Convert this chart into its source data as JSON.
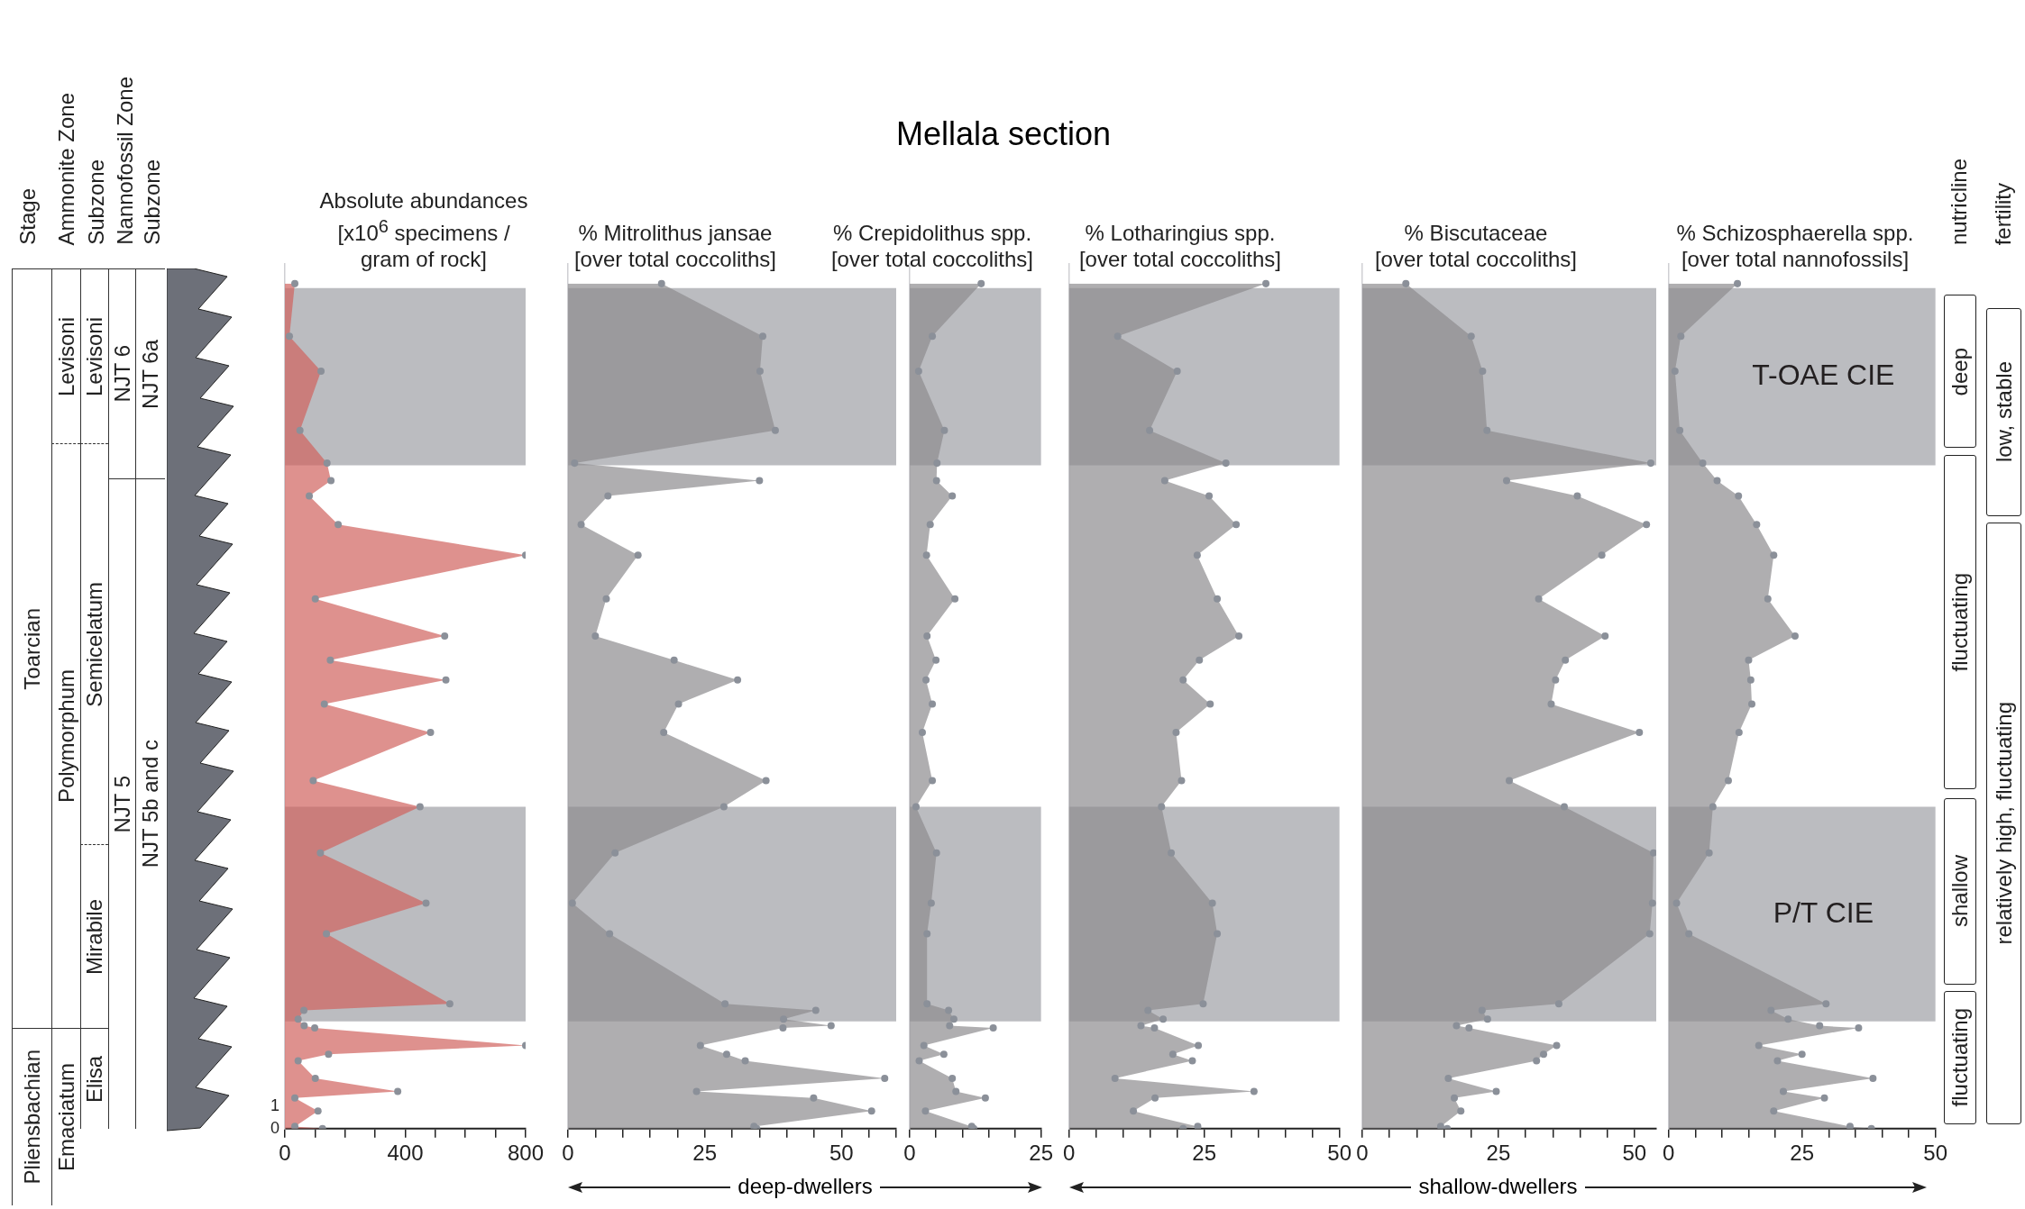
{
  "chart_data": [
    {
      "type": "other",
      "title": "Mellala section",
      "annotations": [
        "Stage",
        "Ammonite Zone",
        "Subzone",
        "Nannofossil Zone",
        "Subzone",
        "Toarcian",
        "Pliensbachian",
        "Levisoni",
        "Polymorphum",
        "Emaciatum",
        "Levisoni",
        "Semicelatum",
        "Mirabile",
        "Elisa",
        "NJT 6",
        "NJT 5",
        "NJT 6a",
        "NJT 5b and c"
      ]
    },
    {
      "type": "area",
      "orientation": "horizontal",
      "title": "Absolute abundances [x10$^{6}$ specimens / gram of rock]",
      "marker": "circle",
      "color": "#d0625e",
      "x": [
        38.6,
        36.2,
        34.6,
        31.9,
        30.4,
        29.6,
        28.9,
        27.6,
        26.2,
        24.2,
        22.5,
        21.4,
        20.5,
        19.4,
        18.1,
        15.9,
        14.7,
        12.6,
        10.3,
        8.9,
        5.7,
        5.4,
        5.0,
        4.7,
        4.6,
        3.8,
        3.4,
        3.1,
        2.3,
        1.7,
        1.4,
        0.8,
        0.1,
        0.0
      ],
      "values": [
        33,
        15,
        120,
        50,
        140,
        153,
        81,
        177,
        800,
        101,
        531,
        151,
        535,
        131,
        484,
        94,
        449,
        118,
        469,
        138,
        548,
        63,
        44,
        64,
        99,
        800,
        145,
        44,
        101,
        375,
        33,
        110,
        33,
        125
      ],
      "xlim": [
        0,
        800
      ],
      "xticks": [
        0,
        {
          "value": 100,
          "label": null
        },
        {
          "value": 200,
          "label": null
        },
        {
          "value": 300,
          "label": null
        },
        400,
        {
          "value": 500,
          "label": null
        },
        {
          "value": 600,
          "label": null
        },
        {
          "value": 700,
          "label": null
        },
        800
      ],
      "ylim": [
        0,
        39.5
      ],
      "yticks": [
        0,
        1
      ],
      "bands": [
        {
          "axis": "y",
          "from": 30.3,
          "to": 38.4,
          "color": "#bbbcc0"
        },
        {
          "axis": "y",
          "from": 4.9,
          "to": 14.7,
          "color": "#bbbcc0"
        }
      ]
    },
    {
      "type": "area",
      "orientation": "horizontal",
      "title": "% Mitrolithus jansae [over total coccoliths]",
      "marker": "circle",
      "color": "#8d8c8f",
      "tick_labels": "x",
      "x": [
        38.6,
        36.2,
        34.6,
        31.9,
        30.4,
        29.6,
        28.9,
        27.6,
        26.2,
        24.2,
        22.5,
        21.4,
        20.5,
        19.4,
        18.1,
        15.9,
        14.7,
        12.6,
        10.3,
        8.9,
        5.7,
        5.4,
        5.0,
        4.7,
        4.6,
        3.8,
        3.4,
        3.1,
        2.3,
        1.7,
        1.4,
        0.8,
        0.1,
        0.0
      ],
      "values": [
        17.1,
        35.6,
        35.1,
        37.9,
        1.2,
        35.0,
        7.3,
        2.4,
        12.8,
        7.0,
        5.0,
        19.4,
        31.0,
        20.2,
        17.5,
        36.2,
        28.5,
        8.6,
        0.8,
        7.6,
        28.7,
        45.3,
        39.4,
        48.1,
        39.3,
        24.2,
        29.0,
        32.4,
        57.9,
        23.5,
        44.9,
        55.5,
        34.0,
        34.5
      ],
      "xlim": [
        0,
        60
      ],
      "xticks": [
        0,
        {
          "value": 5,
          "label": null
        },
        {
          "value": 10,
          "label": null
        },
        {
          "value": 15,
          "label": null
        },
        {
          "value": 20,
          "label": null
        },
        25,
        {
          "value": 30,
          "label": null
        },
        {
          "value": 35,
          "label": null
        },
        {
          "value": 40,
          "label": null
        },
        {
          "value": 45,
          "label": null
        },
        50,
        {
          "value": 55,
          "label": null
        },
        {
          "value": 60,
          "label": null
        }
      ],
      "ylim": [
        0,
        39.5
      ],
      "bands": [
        {
          "axis": "y",
          "from": 30.3,
          "to": 38.4,
          "color": "#bbbcc0"
        },
        {
          "axis": "y",
          "from": 4.9,
          "to": 14.7,
          "color": "#bbbcc0"
        }
      ]
    },
    {
      "type": "area",
      "orientation": "horizontal",
      "title": "% Crepidolithus spp. [over total coccoliths]",
      "marker": "circle",
      "color": "#8d8c8f",
      "tick_labels": "x",
      "x": [
        38.6,
        36.2,
        34.6,
        31.9,
        30.4,
        29.6,
        28.9,
        27.6,
        26.2,
        24.2,
        22.5,
        21.4,
        20.5,
        19.4,
        18.1,
        15.9,
        14.7,
        12.6,
        10.3,
        8.9,
        5.7,
        5.4,
        5.0,
        4.7,
        4.6,
        3.8,
        3.4,
        3.1,
        2.3,
        1.7,
        1.4,
        0.8,
        0.1,
        0.0
      ],
      "values": [
        13.6,
        4.3,
        1.7,
        6.6,
        5.2,
        5.1,
        8.1,
        3.9,
        3.2,
        8.6,
        3.3,
        5.0,
        3.1,
        4.3,
        2.4,
        4.3,
        1.2,
        5.1,
        4.1,
        3.3,
        3.3,
        7.4,
        8.4,
        7.6,
        15.9,
        2.7,
        6.5,
        1.8,
        8.1,
        8.8,
        14.4,
        3.0,
        11.8,
        12.2
      ],
      "xlim": [
        0,
        25
      ],
      "xticks": [
        0,
        {
          "value": 5,
          "label": null
        },
        {
          "value": 10,
          "label": null
        },
        {
          "value": 15,
          "label": null
        },
        {
          "value": 20,
          "label": null
        },
        25
      ],
      "ylim": [
        0,
        39.5
      ],
      "bands": [
        {
          "axis": "y",
          "from": 30.3,
          "to": 38.4,
          "color": "#bbbcc0"
        },
        {
          "axis": "y",
          "from": 4.9,
          "to": 14.7,
          "color": "#bbbcc0"
        }
      ]
    },
    {
      "type": "area",
      "orientation": "horizontal",
      "title": "% Lotharingius spp. [over total coccoliths]",
      "marker": "circle",
      "color": "#8d8c8f",
      "tick_labels": "x",
      "x": [
        38.6,
        36.2,
        34.6,
        31.9,
        30.4,
        29.6,
        28.9,
        27.6,
        26.2,
        24.2,
        22.5,
        21.4,
        20.5,
        19.4,
        18.1,
        15.9,
        14.7,
        12.6,
        10.3,
        8.9,
        5.7,
        5.4,
        5.0,
        4.7,
        4.6,
        3.8,
        3.4,
        3.1,
        2.3,
        1.7,
        1.4,
        0.8,
        0.1,
        0.0
      ],
      "values": [
        36.4,
        9.0,
        20.0,
        14.9,
        29.0,
        17.7,
        25.9,
        30.9,
        23.7,
        27.4,
        31.4,
        24.1,
        21.1,
        26.1,
        19.8,
        20.8,
        17.1,
        18.9,
        26.5,
        27.4,
        24.8,
        14.6,
        17.4,
        13.3,
        15.8,
        23.9,
        19.2,
        22.8,
        8.5,
        34.2,
        15.9,
        11.9,
        23.8,
        21.1
      ],
      "xlim": [
        0,
        50
      ],
      "xticks": [
        0,
        {
          "value": 5,
          "label": null
        },
        {
          "value": 10,
          "label": null
        },
        {
          "value": 15,
          "label": null
        },
        {
          "value": 20,
          "label": null
        },
        25,
        {
          "value": 30,
          "label": null
        },
        {
          "value": 35,
          "label": null
        },
        {
          "value": 40,
          "label": null
        },
        {
          "value": 45,
          "label": null
        },
        50
      ],
      "ylim": [
        0,
        39.5
      ],
      "bands": [
        {
          "axis": "y",
          "from": 30.3,
          "to": 38.4,
          "color": "#bbbcc0"
        },
        {
          "axis": "y",
          "from": 4.9,
          "to": 14.7,
          "color": "#bbbcc0"
        }
      ]
    },
    {
      "type": "area",
      "orientation": "horizontal",
      "title": "% Biscutaceae [over total coccoliths]",
      "marker": "circle",
      "color": "#8d8c8f",
      "tick_labels": "x",
      "x": [
        38.6,
        36.2,
        34.6,
        31.9,
        30.4,
        29.6,
        28.9,
        27.6,
        26.2,
        24.2,
        22.5,
        21.4,
        20.5,
        19.4,
        18.1,
        15.9,
        14.7,
        12.6,
        10.3,
        8.9,
        5.7,
        5.4,
        5.0,
        4.7,
        4.6,
        3.8,
        3.4,
        3.1,
        2.3,
        1.7,
        1.4,
        0.8,
        0.1,
        0.0
      ],
      "values": [
        8.0,
        20.0,
        22.1,
        22.9,
        53.0,
        26.5,
        39.5,
        52.2,
        44.0,
        32.4,
        44.6,
        37.3,
        35.5,
        34.7,
        50.9,
        27.0,
        37.1,
        53.5,
        53.3,
        52.8,
        36.1,
        22.0,
        23.0,
        17.3,
        19.6,
        35.7,
        33.3,
        32.0,
        15.8,
        24.6,
        16.9,
        18.1,
        14.4,
        15.6
      ],
      "xlim": [
        0,
        54
      ],
      "xticks": [
        0,
        {
          "value": 5,
          "label": null
        },
        {
          "value": 10,
          "label": null
        },
        {
          "value": 15,
          "label": null
        },
        {
          "value": 20,
          "label": null
        },
        25,
        {
          "value": 30,
          "label": null
        },
        {
          "value": 35,
          "label": null
        },
        {
          "value": 40,
          "label": null
        },
        {
          "value": 45,
          "label": null
        },
        50
      ],
      "ylim": [
        0,
        39.5
      ],
      "bands": [
        {
          "axis": "y",
          "from": 30.3,
          "to": 38.4,
          "color": "#bbbcc0"
        },
        {
          "axis": "y",
          "from": 4.9,
          "to": 14.7,
          "color": "#bbbcc0"
        }
      ]
    },
    {
      "type": "area",
      "orientation": "horizontal",
      "title": "% Schizosphaerella spp. [over total nannofossils]",
      "marker": "circle",
      "color": "#8d8c8f",
      "tick_labels": "x",
      "x": [
        38.6,
        36.2,
        34.6,
        31.9,
        30.4,
        29.6,
        28.9,
        27.6,
        26.2,
        24.2,
        22.5,
        21.4,
        20.5,
        19.4,
        18.1,
        15.9,
        14.7,
        12.6,
        10.3,
        8.9,
        5.7,
        5.4,
        5.0,
        4.7,
        4.6,
        3.8,
        3.4,
        3.1,
        2.3,
        1.7,
        1.4,
        0.8,
        0.1,
        0.0
      ],
      "values": [
        12.9,
        2.3,
        1.2,
        2.1,
        6.4,
        9.1,
        13.1,
        16.5,
        19.7,
        18.6,
        23.7,
        15.0,
        15.4,
        15.6,
        13.2,
        11.2,
        8.3,
        7.6,
        1.5,
        3.8,
        29.5,
        19.2,
        22.4,
        28.3,
        35.6,
        16.9,
        25.0,
        20.4,
        38.3,
        21.5,
        29.2,
        19.7,
        34.0,
        38.0
      ],
      "xlim": [
        0,
        50
      ],
      "xticks": [
        0,
        {
          "value": 5,
          "label": null
        },
        {
          "value": 10,
          "label": null
        },
        {
          "value": 15,
          "label": null
        },
        {
          "value": 20,
          "label": null
        },
        25,
        {
          "value": 30,
          "label": null
        },
        {
          "value": 35,
          "label": null
        },
        {
          "value": 40,
          "label": null
        },
        {
          "value": 45,
          "label": null
        },
        50
      ],
      "ylim": [
        0,
        39.5
      ],
      "bands": [
        {
          "axis": "y",
          "from": 30.3,
          "to": 38.4,
          "color": "#bbbcc0",
          "label": "T-OAE CIE"
        },
        {
          "axis": "y",
          "from": 4.9,
          "to": 14.7,
          "color": "#bbbcc0",
          "label": "P/T CIE"
        }
      ]
    },
    {
      "type": "other",
      "annotations": [
        "nutricline",
        "fertility",
        "deep",
        "fluctuating",
        "shallow",
        "fluctuating",
        "low, stable",
        "relatively high, fluctuating",
        "deep-dwellers",
        "shallow-dwellers"
      ]
    }
  ]
}
